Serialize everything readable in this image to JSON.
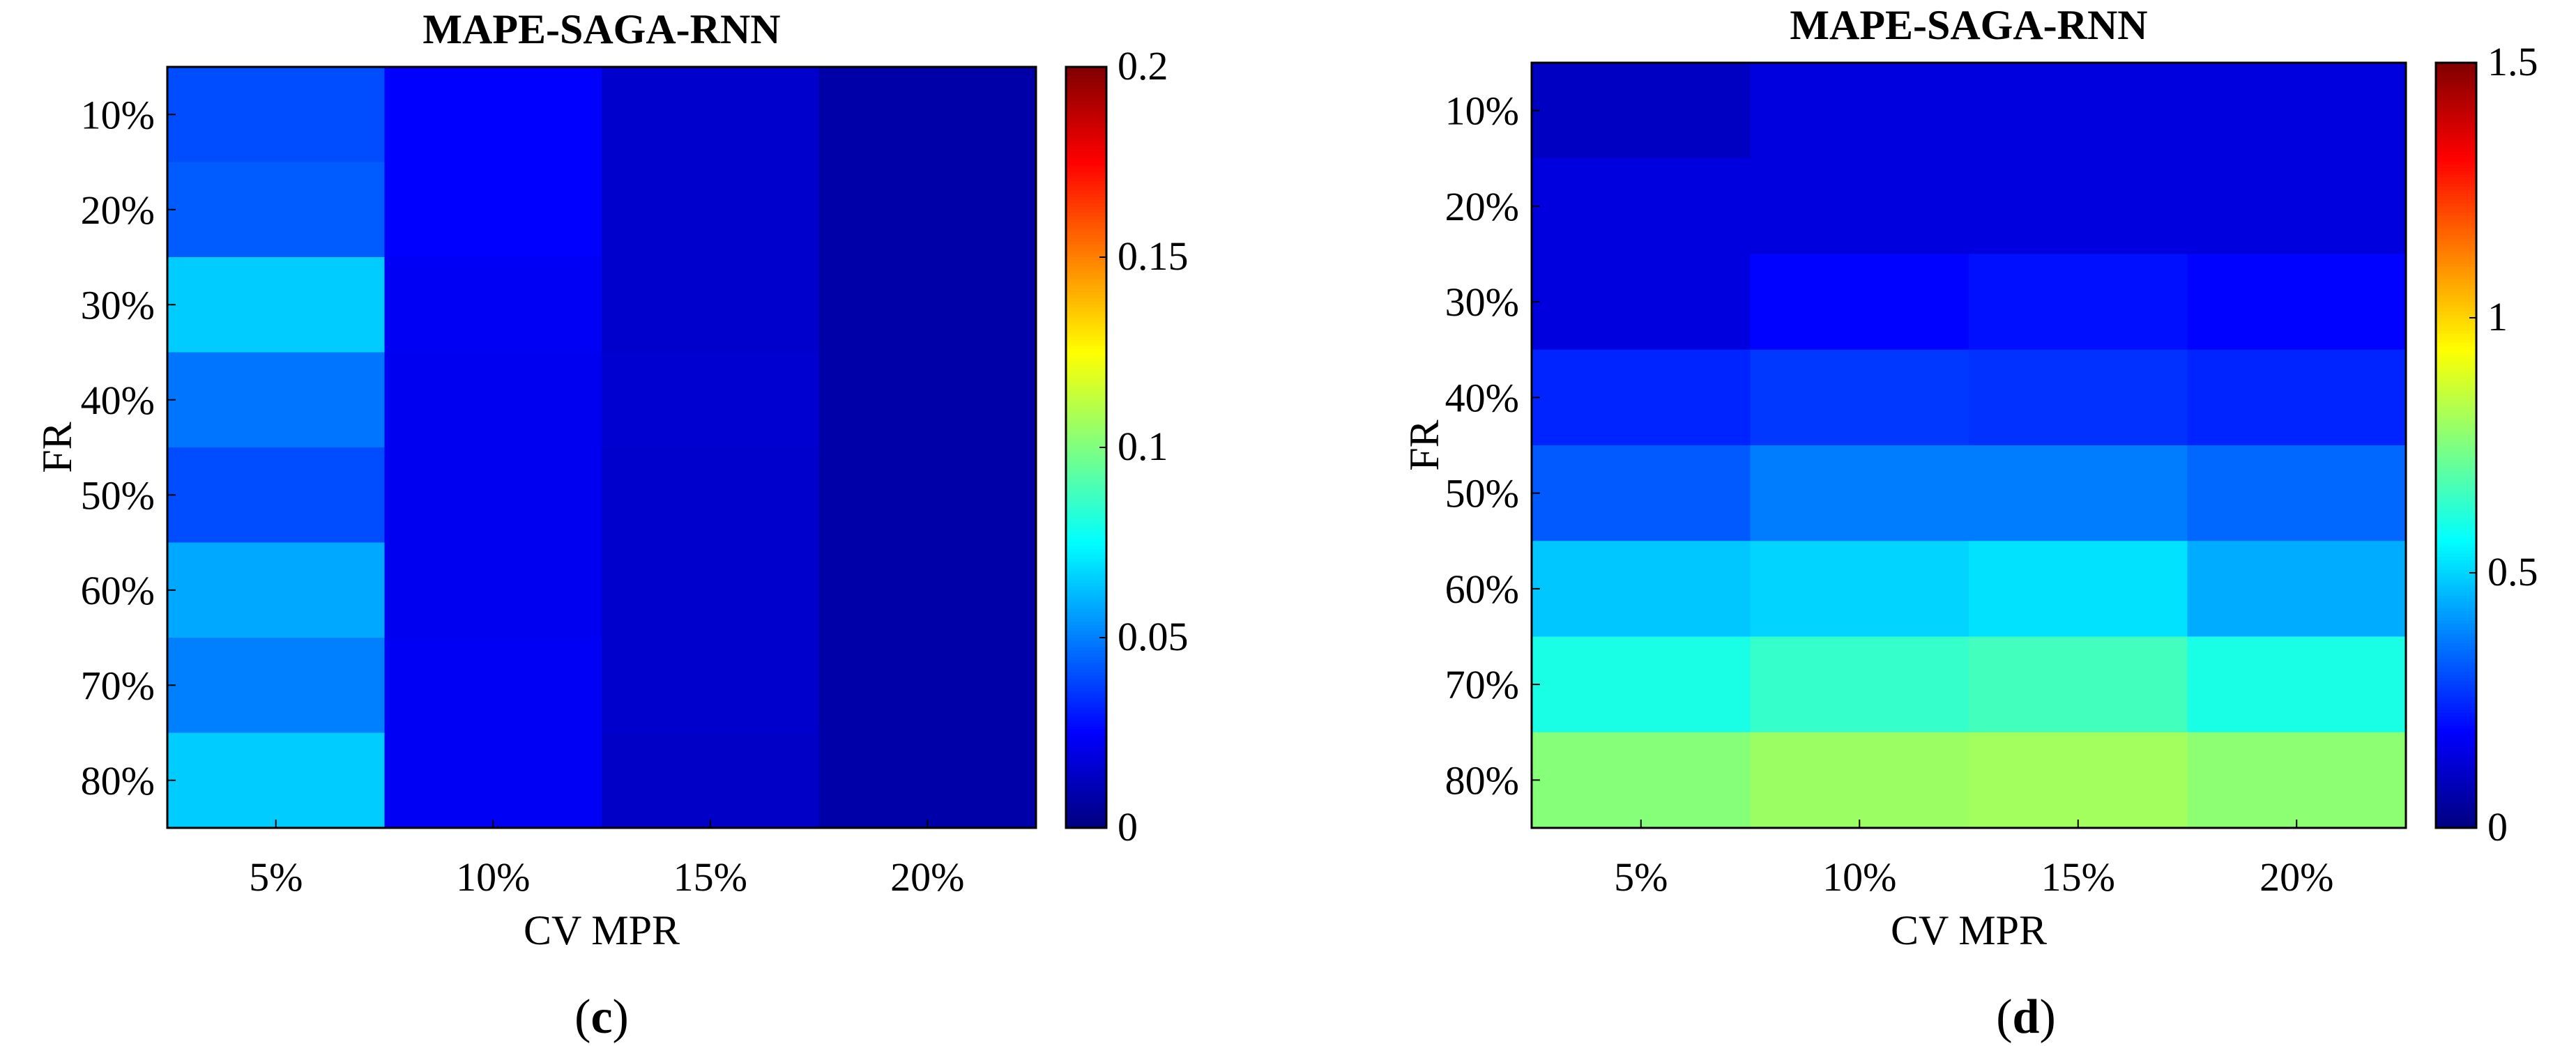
{
  "chart_data": [
    {
      "type": "heatmap",
      "title": "MAPE-SAGA-RNN",
      "panel_label": "c",
      "xlabel": "CV MPR",
      "ylabel": "FR",
      "x_categories": [
        "5%",
        "10%",
        "15%",
        "20%"
      ],
      "y_categories": [
        "10%",
        "20%",
        "30%",
        "40%",
        "50%",
        "60%",
        "70%",
        "80%"
      ],
      "values": [
        [
          0.04,
          0.025,
          0.015,
          0.008
        ],
        [
          0.043,
          0.025,
          0.015,
          0.008
        ],
        [
          0.065,
          0.023,
          0.015,
          0.008
        ],
        [
          0.048,
          0.022,
          0.016,
          0.008
        ],
        [
          0.04,
          0.022,
          0.015,
          0.008
        ],
        [
          0.058,
          0.022,
          0.015,
          0.008
        ],
        [
          0.05,
          0.023,
          0.015,
          0.008
        ],
        [
          0.065,
          0.023,
          0.014,
          0.008
        ]
      ],
      "colorbar": {
        "min": 0,
        "max": 0.2,
        "ticks": [
          "0",
          "0.05",
          "0.1",
          "0.15",
          "0.2"
        ],
        "tick_values": [
          0,
          0.05,
          0.1,
          0.15,
          0.2
        ]
      },
      "colormap": "jet"
    },
    {
      "type": "heatmap",
      "title": "MAPE-SAGA-RNN",
      "panel_label": "d",
      "xlabel": "CV MPR",
      "ylabel": "FR",
      "x_categories": [
        "5%",
        "10%",
        "15%",
        "20%"
      ],
      "y_categories": [
        "10%",
        "20%",
        "30%",
        "40%",
        "50%",
        "60%",
        "70%",
        "80%"
      ],
      "values": [
        [
          0.1,
          0.14,
          0.14,
          0.14
        ],
        [
          0.14,
          0.14,
          0.14,
          0.14
        ],
        [
          0.14,
          0.19,
          0.21,
          0.19
        ],
        [
          0.24,
          0.27,
          0.26,
          0.24
        ],
        [
          0.32,
          0.37,
          0.37,
          0.34
        ],
        [
          0.48,
          0.5,
          0.52,
          0.44
        ],
        [
          0.6,
          0.64,
          0.66,
          0.6
        ],
        [
          0.76,
          0.79,
          0.8,
          0.77
        ]
      ],
      "colorbar": {
        "min": 0,
        "max": 1.5,
        "ticks": [
          "0",
          "0.5",
          "1",
          "1.5"
        ],
        "tick_values": [
          0,
          0.5,
          1,
          1.5
        ]
      },
      "colormap": "jet"
    }
  ]
}
